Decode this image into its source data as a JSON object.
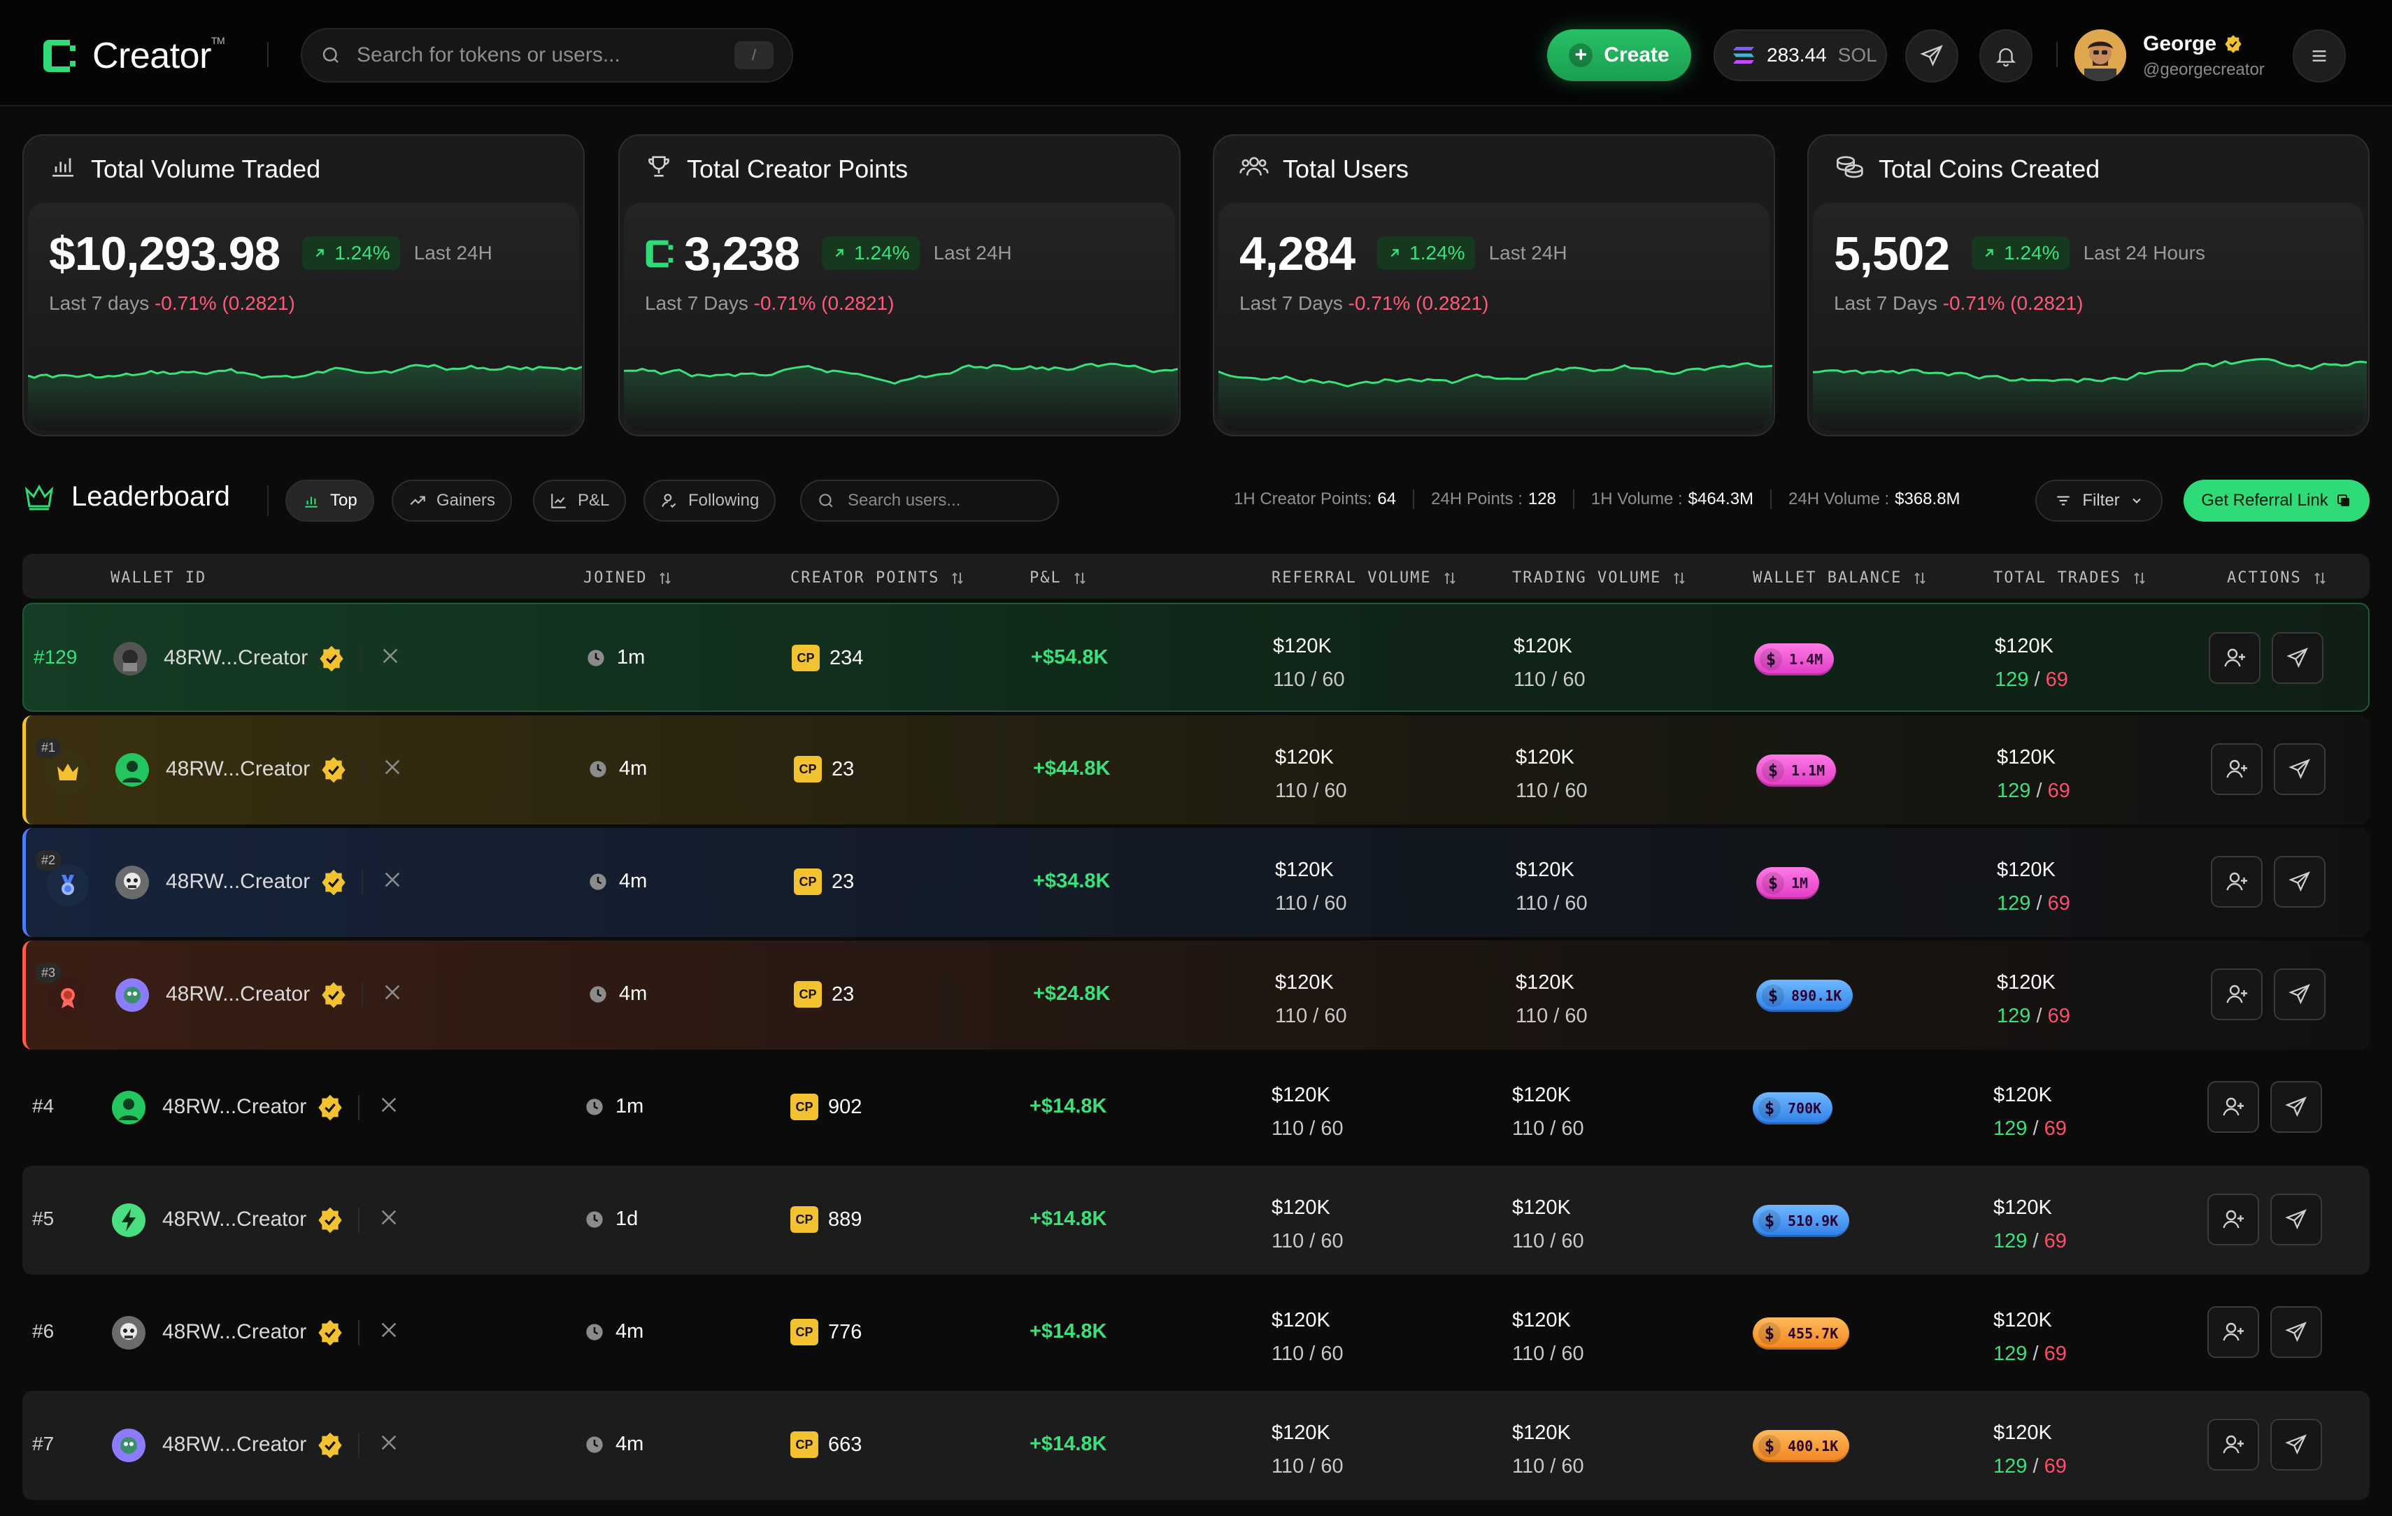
{
  "header": {
    "app_name": "Creator",
    "trademark": "TM",
    "search_placeholder": "Search for tokens or users...",
    "search_shortcut": "/",
    "create_label": "Create",
    "balance_value": "283.44",
    "balance_unit": "SOL",
    "user_name": "George",
    "user_handle": "@georgecreator"
  },
  "stats": [
    {
      "title": "Total Volume Traded",
      "icon": "bar-chart-icon",
      "value": "$10,293.98",
      "change": "1.24%",
      "period": "Last 24H",
      "sub_label": "Last 7 days",
      "sub_change": "-0.71% (0.2821)",
      "has_cp_icon": false
    },
    {
      "title": "Total Creator Points",
      "icon": "trophy-icon",
      "value": "3,238",
      "change": "1.24%",
      "period": "Last 24H",
      "sub_label": "Last 7 Days",
      "sub_change": "-0.71% (0.2821)",
      "has_cp_icon": true
    },
    {
      "title": "Total Users",
      "icon": "users-icon",
      "value": "4,284",
      "change": "1.24%",
      "period": "Last 24H",
      "sub_label": "Last 7 Days",
      "sub_change": "-0.71% (0.2821)",
      "has_cp_icon": false
    },
    {
      "title": "Total Coins Created",
      "icon": "coins-icon",
      "value": "5,502",
      "change": "1.24%",
      "period": "Last 24 Hours",
      "sub_label": "Last 7 Days",
      "sub_change": "-0.71% (0.2821)",
      "has_cp_icon": false
    }
  ],
  "leaderboard": {
    "title": "Leaderboard",
    "tabs": [
      "Top",
      "Gainers",
      "P&L",
      "Following"
    ],
    "search_placeholder": "Search users...",
    "metrics": [
      {
        "label": "1H Creator Points:",
        "value": "64"
      },
      {
        "label": "24H Points :",
        "value": "128"
      },
      {
        "label": "1H Volume :",
        "value": "$464.3M"
      },
      {
        "label": "24H Volume :",
        "value": "$368.8M"
      }
    ],
    "filter_label": "Filter",
    "referral_label": "Get Referral Link"
  },
  "table": {
    "columns": [
      "WALLET ID",
      "JOINED",
      "CREATOR POINTS",
      "P&L",
      "REFERRAL VOLUME",
      "TRADING VOLUME",
      "WALLET BALANCE",
      "TOTAL TRADES",
      "ACTIONS"
    ],
    "cp_badge": "CP",
    "rows": [
      {
        "rank": "#129",
        "wallet": "48RW...Creator",
        "joined": "1m",
        "points": "234",
        "pnl": "+$54.8K",
        "ref_main": "$120K",
        "ref_sub": "110 / 60",
        "trade_main": "$120K",
        "trade_sub": "110 / 60",
        "balance": "1.4M",
        "balance_color": "pink",
        "trades_main": "$120K",
        "trades_win": "129",
        "trades_loss": "69"
      },
      {
        "rank": "#1",
        "wallet": "48RW...Creator",
        "joined": "4m",
        "points": "23",
        "pnl": "+$44.8K",
        "ref_main": "$120K",
        "ref_sub": "110 / 60",
        "trade_main": "$120K",
        "trade_sub": "110 / 60",
        "balance": "1.1M",
        "balance_color": "pink",
        "trades_main": "$120K",
        "trades_win": "129",
        "trades_loss": "69"
      },
      {
        "rank": "#2",
        "wallet": "48RW...Creator",
        "joined": "4m",
        "points": "23",
        "pnl": "+$34.8K",
        "ref_main": "$120K",
        "ref_sub": "110 / 60",
        "trade_main": "$120K",
        "trade_sub": "110 / 60",
        "balance": "1M",
        "balance_color": "pink",
        "trades_main": "$120K",
        "trades_win": "129",
        "trades_loss": "69"
      },
      {
        "rank": "#3",
        "wallet": "48RW...Creator",
        "joined": "4m",
        "points": "23",
        "pnl": "+$24.8K",
        "ref_main": "$120K",
        "ref_sub": "110 / 60",
        "trade_main": "$120K",
        "trade_sub": "110 / 60",
        "balance": "890.1K",
        "balance_color": "blue",
        "trades_main": "$120K",
        "trades_win": "129",
        "trades_loss": "69"
      },
      {
        "rank": "#4",
        "wallet": "48RW...Creator",
        "joined": "1m",
        "points": "902",
        "pnl": "+$14.8K",
        "ref_main": "$120K",
        "ref_sub": "110 / 60",
        "trade_main": "$120K",
        "trade_sub": "110 / 60",
        "balance": "700K",
        "balance_color": "blue",
        "trades_main": "$120K",
        "trades_win": "129",
        "trades_loss": "69"
      },
      {
        "rank": "#5",
        "wallet": "48RW...Creator",
        "joined": "1d",
        "points": "889",
        "pnl": "+$14.8K",
        "ref_main": "$120K",
        "ref_sub": "110 / 60",
        "trade_main": "$120K",
        "trade_sub": "110 / 60",
        "balance": "510.9K",
        "balance_color": "blue",
        "trades_main": "$120K",
        "trades_win": "129",
        "trades_loss": "69"
      },
      {
        "rank": "#6",
        "wallet": "48RW...Creator",
        "joined": "4m",
        "points": "776",
        "pnl": "+$14.8K",
        "ref_main": "$120K",
        "ref_sub": "110 / 60",
        "trade_main": "$120K",
        "trade_sub": "110 / 60",
        "balance": "455.7K",
        "balance_color": "orange",
        "trades_main": "$120K",
        "trades_win": "129",
        "trades_loss": "69"
      },
      {
        "rank": "#7",
        "wallet": "48RW...Creator",
        "joined": "4m",
        "points": "663",
        "pnl": "+$14.8K",
        "ref_main": "$120K",
        "ref_sub": "110 / 60",
        "trade_main": "$120K",
        "trade_sub": "110 / 60",
        "balance": "400.1K",
        "balance_color": "orange",
        "trades_main": "$120K",
        "trades_win": "129",
        "trades_loss": "69"
      }
    ]
  },
  "colors": {
    "accent": "#2fdb76",
    "positive": "#3ae07a",
    "negative": "#ff4d6d",
    "gold": "#f2c230",
    "pink": "#ff5bd8",
    "blue": "#3b9dff",
    "orange": "#ff9a2e"
  }
}
